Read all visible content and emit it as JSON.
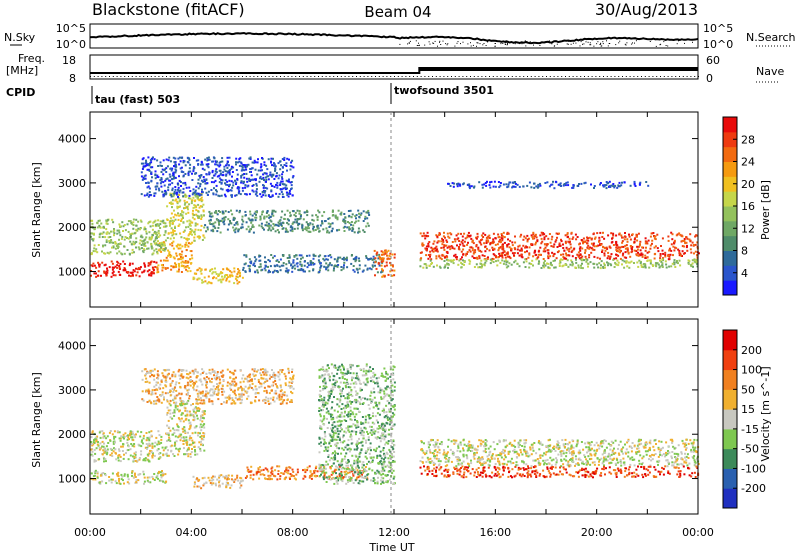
{
  "header": {
    "station": "Blackstone (fitACF)",
    "beam": "Beam 04",
    "date": "30/Aug/2013"
  },
  "strips": {
    "nsky_label": "N.Sky",
    "nsky_ticks": [
      "10^5",
      "10^0"
    ],
    "nsky_right_ticks": [
      "10^5",
      "10^0"
    ],
    "nsearch_label": "N.Search",
    "freq_label_line1": "Freq.",
    "freq_label_line2": "[MHz]",
    "freq_ticks": [
      "18",
      "8"
    ],
    "nave_ticks": [
      "60",
      "0"
    ],
    "nave_label": "Nave",
    "cpid_label": "CPID",
    "cpid_segments": [
      {
        "name": "tau (fast) 503",
        "start_hour": 0
      },
      {
        "name": "twofsound 3501",
        "start_hour": 12
      }
    ],
    "freq_step": {
      "before_mhz": 11,
      "after_mhz": 13.5,
      "switch_hour": 13
    }
  },
  "chart_data": [
    {
      "type": "heatmap",
      "title": "Power",
      "ylabel": "Slant Range [km]",
      "yticks": [
        "4000",
        "3000",
        "2000",
        "1000"
      ],
      "ylim": [
        200,
        4600
      ],
      "xlim": [
        0,
        24
      ],
      "colorbar_label": "Power [dB]",
      "colorbar_ticks": [
        "28",
        "24",
        "20",
        "16",
        "12",
        "8",
        "4"
      ],
      "colorbar_colors": [
        "#1a1aff",
        "#2a55cc",
        "#2e6a9a",
        "#4f8c6a",
        "#6fa865",
        "#93c15c",
        "#c5d64a",
        "#f0c020",
        "#f59a10",
        "#f26a10",
        "#ee3a10",
        "#e80a0a"
      ],
      "bands": [
        {
          "hours": [
            0,
            2.6
          ],
          "range_km": [
            900,
            1250
          ],
          "level": 11
        },
        {
          "hours": [
            2.6,
            4
          ],
          "range_km": [
            1000,
            1700
          ],
          "level": 8
        },
        {
          "hours": [
            0,
            3
          ],
          "range_km": [
            1400,
            2200
          ],
          "level": 5
        },
        {
          "hours": [
            3,
            4.5
          ],
          "range_km": [
            1700,
            2800
          ],
          "level": 6
        },
        {
          "hours": [
            4.5,
            11
          ],
          "range_km": [
            1900,
            2400
          ],
          "level": 3
        },
        {
          "hours": [
            4,
            6
          ],
          "range_km": [
            750,
            1100
          ],
          "level": 7
        },
        {
          "hours": [
            6,
            11.5
          ],
          "range_km": [
            1000,
            1400
          ],
          "level": 2
        },
        {
          "hours": [
            11.2,
            12
          ],
          "range_km": [
            900,
            1500
          ],
          "level": 9
        },
        {
          "hours": [
            13,
            24
          ],
          "range_km": [
            1300,
            1900
          ],
          "level": 10
        },
        {
          "hours": [
            13,
            24
          ],
          "range_km": [
            1100,
            1300
          ],
          "level": 5
        },
        {
          "hours": [
            2,
            8
          ],
          "range_km": [
            2700,
            3600
          ],
          "level": 1
        },
        {
          "hours": [
            14,
            22
          ],
          "range_km": [
            2900,
            3050
          ],
          "level": 1
        }
      ]
    },
    {
      "type": "heatmap",
      "title": "Velocity",
      "ylabel": "Slant Range [km]",
      "yticks": [
        "4000",
        "3000",
        "2000",
        "1000"
      ],
      "ylim": [
        200,
        4600
      ],
      "xlim": [
        0,
        24
      ],
      "xticks": [
        "00:00",
        "04:00",
        "08:00",
        "12:00",
        "16:00",
        "20:00",
        "00:00"
      ],
      "xlabel": "Time UT",
      "colorbar_label": "Velocity [m s^-1]",
      "colorbar_ticks": [
        "200",
        "100",
        "50",
        "15",
        "-15",
        "-50",
        "-100",
        "-200"
      ],
      "colorbar_colors": [
        "#2030c0",
        "#2a60b0",
        "#3c8a5a",
        "#7ec850",
        "#c8c8c0",
        "#f0b030",
        "#f08020",
        "#f04010",
        "#e00000"
      ],
      "bands": [
        {
          "hours": [
            0,
            3
          ],
          "range_km": [
            900,
            1200
          ],
          "level": 4
        },
        {
          "hours": [
            0,
            3
          ],
          "range_km": [
            1400,
            2100
          ],
          "level": 4
        },
        {
          "hours": [
            3,
            4.5
          ],
          "range_km": [
            1500,
            2800
          ],
          "level": 4
        },
        {
          "hours": [
            4,
            6
          ],
          "range_km": [
            800,
            1100
          ],
          "level": 5
        },
        {
          "hours": [
            6,
            11
          ],
          "range_km": [
            1000,
            1300
          ],
          "level": 6
        },
        {
          "hours": [
            9,
            12
          ],
          "range_km": [
            900,
            3600
          ],
          "level": 3
        },
        {
          "hours": [
            13,
            24
          ],
          "range_km": [
            1300,
            1900
          ],
          "level": 4
        },
        {
          "hours": [
            13,
            24
          ],
          "range_km": [
            1050,
            1300
          ],
          "level": 7
        },
        {
          "hours": [
            2,
            8
          ],
          "range_km": [
            2700,
            3500
          ],
          "level": 5
        }
      ]
    }
  ]
}
